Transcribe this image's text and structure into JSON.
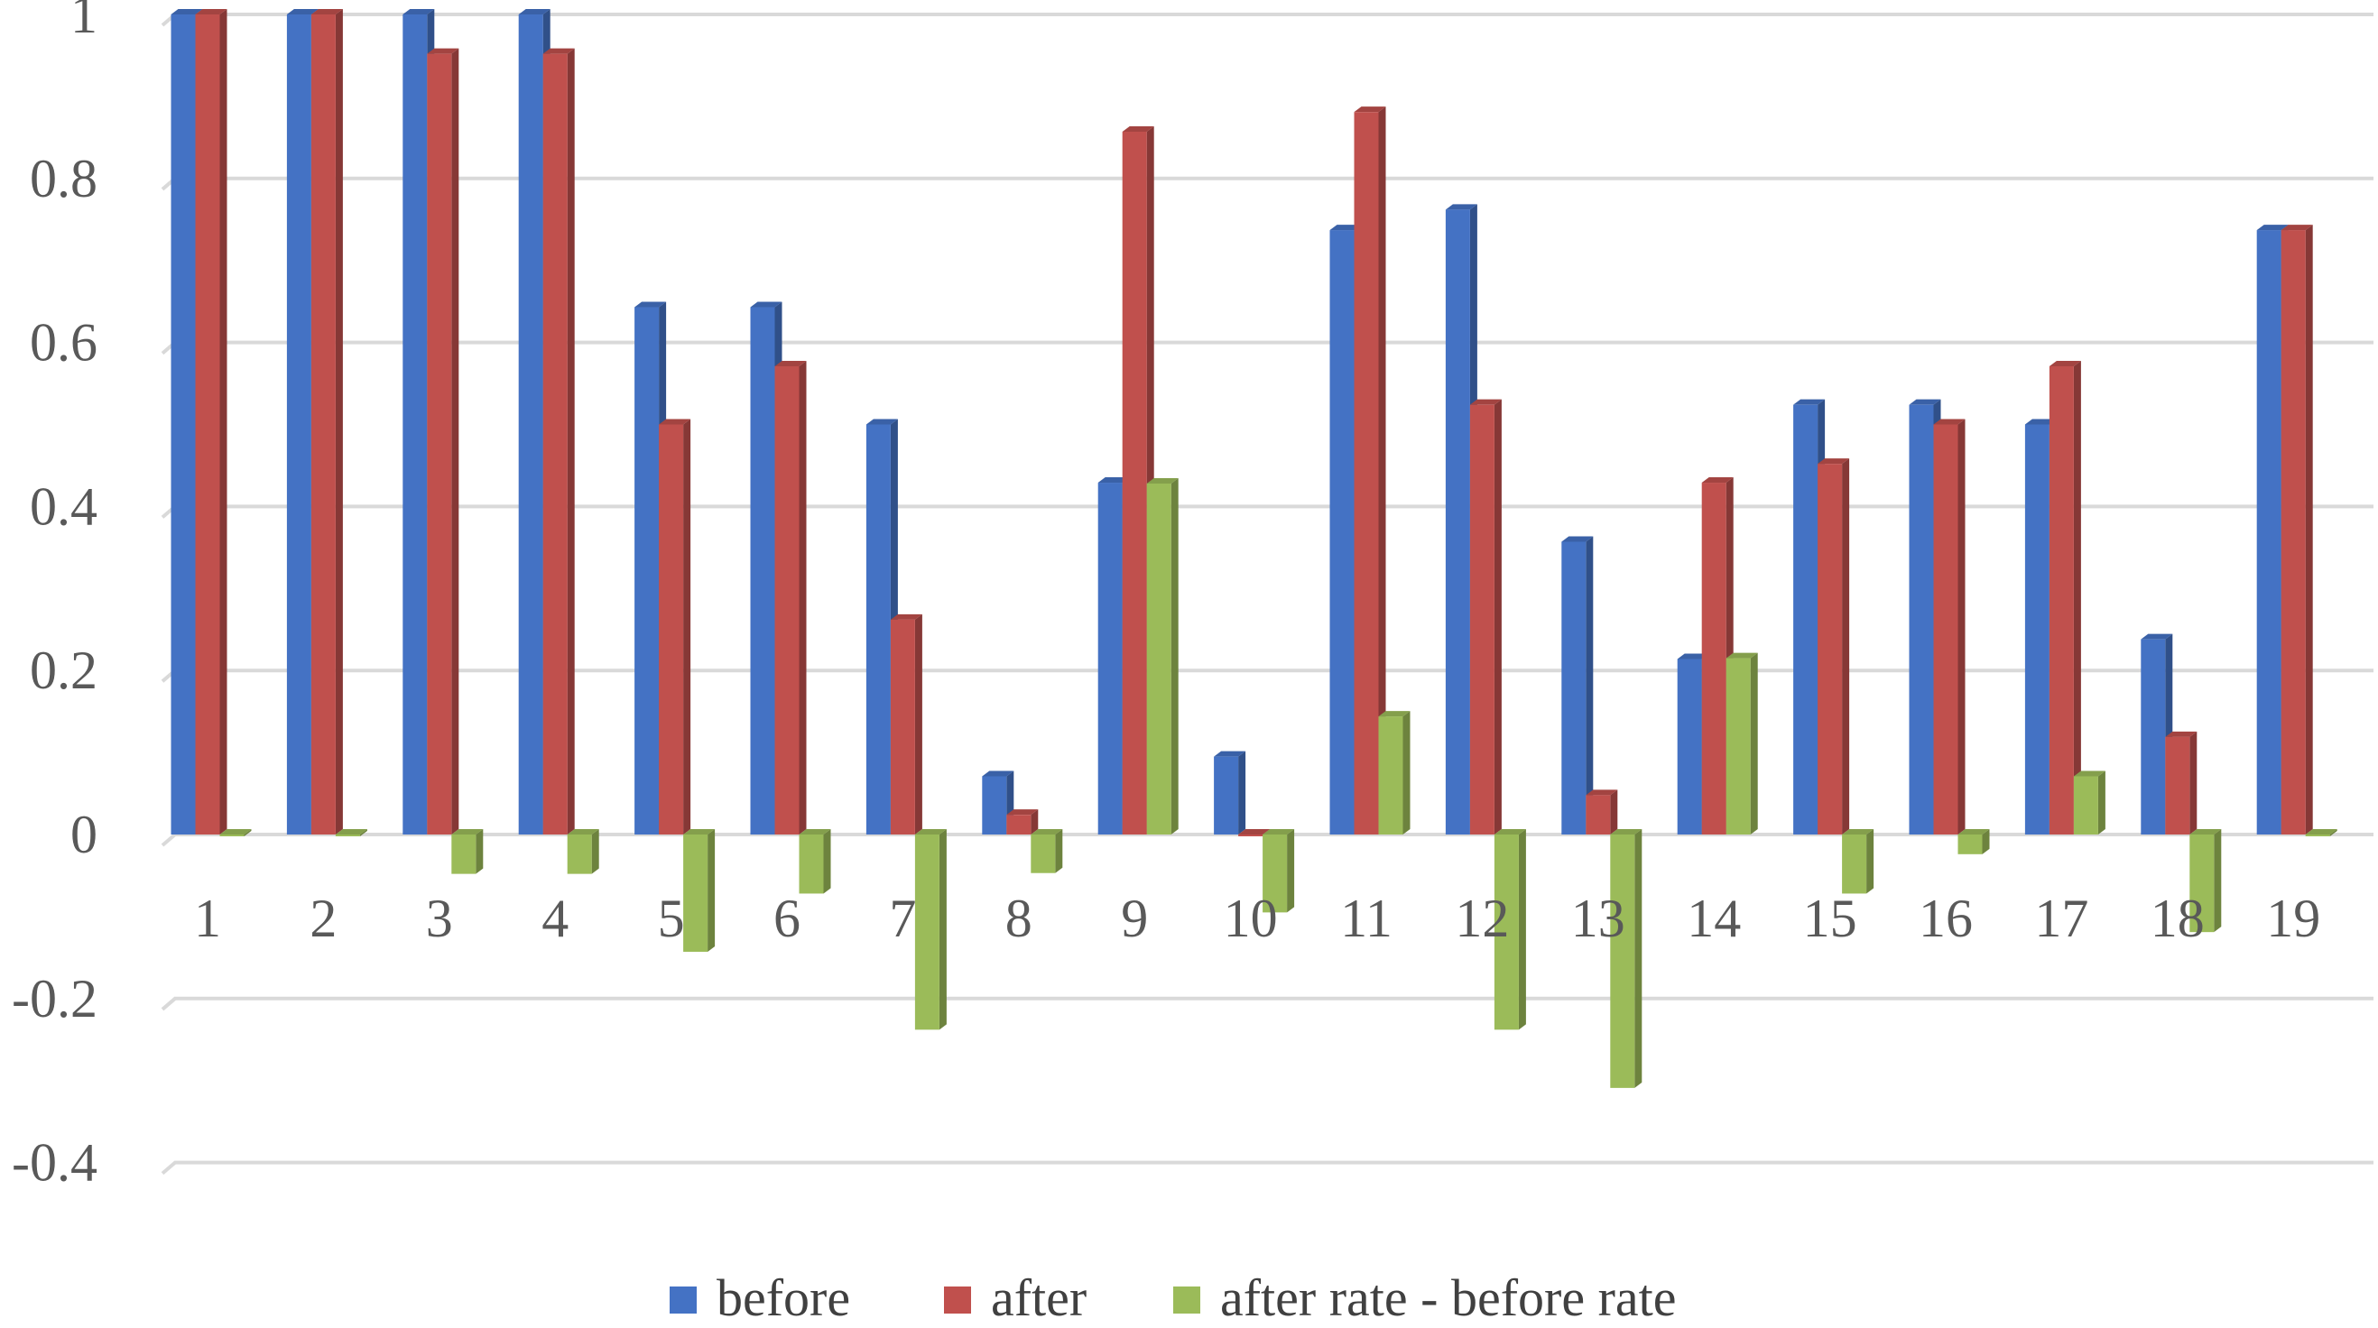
{
  "chart_data": {
    "type": "bar",
    "title": "",
    "xlabel": "",
    "ylabel": "",
    "ylim": [
      -0.4,
      1
    ],
    "yticks": [
      "-0.4",
      "-0.2",
      "0",
      "0.2",
      "0.4",
      "0.6",
      "0.8",
      "1"
    ],
    "ytick_values": [
      -0.4,
      -0.2,
      0,
      0.2,
      0.4,
      0.6,
      0.8,
      1
    ],
    "grid": true,
    "legend_position": "bottom",
    "style": "3d-clustered-column",
    "categories": [
      "1",
      "2",
      "3",
      "4",
      "5",
      "6",
      "7",
      "8",
      "9",
      "10",
      "11",
      "12",
      "13",
      "14",
      "15",
      "16",
      "17",
      "18",
      "19"
    ],
    "series": [
      {
        "name": "before",
        "color": "#4472C4",
        "values": [
          1,
          1,
          1,
          1,
          0.643,
          0.643,
          0.5,
          0.071,
          0.429,
          0.095,
          0.737,
          0.762,
          0.357,
          0.214,
          0.524,
          0.524,
          0.5,
          0.238,
          0.737
        ]
      },
      {
        "name": "after",
        "color": "#C0504D",
        "values": [
          1,
          1,
          0.952,
          0.952,
          0.5,
          0.571,
          0.262,
          0.024,
          0.857,
          0,
          0.881,
          0.524,
          0.048,
          0.429,
          0.452,
          0.5,
          0.571,
          0.119,
          0.737
        ]
      },
      {
        "name": "after rate - before rate",
        "color": "#9BBB59",
        "values": [
          0,
          0,
          -0.048,
          -0.048,
          -0.143,
          -0.072,
          -0.238,
          -0.047,
          0.428,
          -0.095,
          0.144,
          -0.238,
          -0.309,
          0.215,
          -0.072,
          -0.024,
          0.071,
          -0.119,
          0
        ]
      }
    ]
  }
}
